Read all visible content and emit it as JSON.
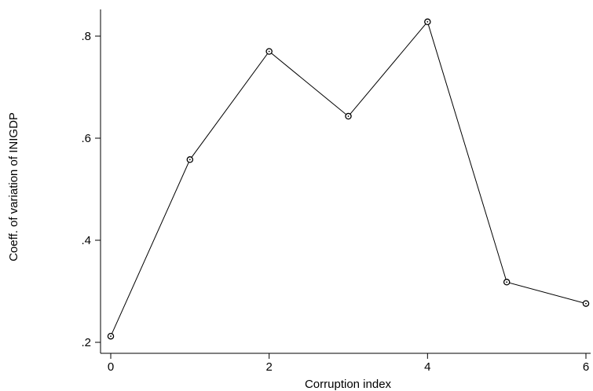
{
  "chart_data": {
    "type": "line",
    "title": "",
    "xlabel": "Corruption index",
    "ylabel": "Coeff. of variation of INIGDP",
    "x": [
      0,
      1,
      2,
      3,
      4,
      5,
      6
    ],
    "series": [
      {
        "values": [
          0.212,
          0.558,
          0.77,
          0.643,
          0.828,
          0.318,
          0.276
        ]
      }
    ],
    "xlim": [
      0,
      6
    ],
    "ylim": [
      0.2,
      0.8
    ],
    "xticks": [
      0,
      2,
      4,
      6
    ],
    "xtick_labels": [
      "0",
      "2",
      "4",
      "6"
    ],
    "yticks": [
      0.2,
      0.4,
      0.6,
      0.8
    ],
    "ytick_labels": [
      ".2",
      ".4",
      ".6",
      ".8"
    ],
    "grid": false,
    "legend": "none",
    "marker": "hollow-circle",
    "line_color": "#000000"
  }
}
